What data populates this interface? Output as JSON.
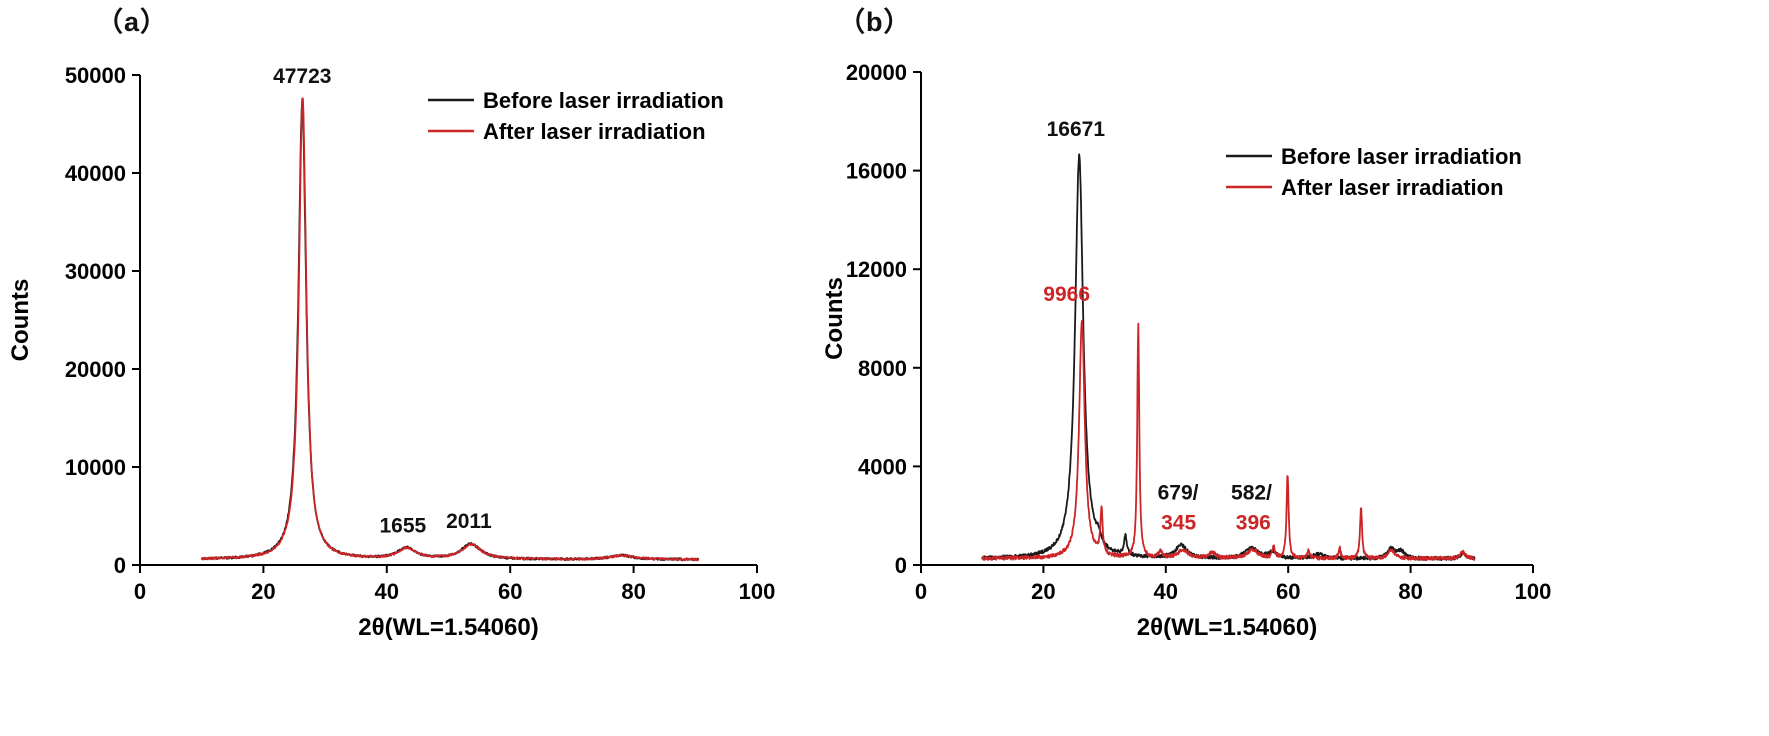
{
  "figure": {
    "panels": [
      {
        "label": "（a）"
      },
      {
        "label": "（b）"
      }
    ]
  },
  "chart_data": [
    {
      "id": "a",
      "type": "line",
      "panel_label": "（a）",
      "xlabel": "2θ(WL=1.54060)",
      "ylabel": "Counts",
      "xlim": [
        0,
        100
      ],
      "ylim": [
        0,
        50000
      ],
      "xticks": [
        0,
        20,
        40,
        60,
        80,
        100
      ],
      "yticks": [
        0,
        10000,
        20000,
        30000,
        40000,
        50000
      ],
      "x_range_data": [
        10,
        90.5
      ],
      "legend": [
        {
          "label": "Before laser irradiation",
          "color": "#1a1a1a"
        },
        {
          "label": "After laser irradiation",
          "color": "#cc2527"
        }
      ],
      "series": [
        {
          "name": "Before laser irradiation",
          "color": "#1a1a1a",
          "baseline": 550,
          "noise": 110,
          "peaks": [
            [
              26.3,
              46800,
              0.75
            ],
            [
              43.2,
              1150,
              1.7
            ],
            [
              53.6,
              1550,
              1.9
            ],
            [
              78.0,
              420,
              2.2
            ]
          ]
        },
        {
          "name": "After laser irradiation",
          "color": "#cc2527",
          "baseline": 560,
          "noise": 110,
          "peaks": [
            [
              26.35,
              47200,
              0.73
            ],
            [
              43.3,
              1100,
              1.7
            ],
            [
              53.7,
              1500,
              1.9
            ],
            [
              78.1,
              400,
              2.2
            ]
          ]
        }
      ],
      "annotations": [
        {
          "text": "47723",
          "x": 26.3,
          "y": 49200,
          "color": "#111111"
        },
        {
          "text": "1655",
          "x": 42.6,
          "y": 3300,
          "color": "#111111"
        },
        {
          "text": "2011",
          "x": 53.3,
          "y": 3800,
          "color": "#111111"
        }
      ]
    },
    {
      "id": "b",
      "type": "line",
      "panel_label": "（b）",
      "xlabel": "2θ(WL=1.54060)",
      "ylabel": "Counts",
      "xlim": [
        0,
        100
      ],
      "ylim": [
        0,
        20000
      ],
      "xticks": [
        0,
        20,
        40,
        60,
        80,
        100
      ],
      "yticks": [
        0,
        4000,
        8000,
        12000,
        16000,
        20000
      ],
      "x_range_data": [
        10,
        90.5
      ],
      "legend": [
        {
          "label": "Before laser irradiation",
          "color": "#1a1a1a"
        },
        {
          "label": "After laser irradiation",
          "color": "#cc2527"
        }
      ],
      "series": [
        {
          "name": "Before laser irradiation",
          "color": "#1a1a1a",
          "baseline": 250,
          "noise": 70,
          "peaks": [
            [
              25.85,
              16350,
              0.8
            ],
            [
              29.0,
              380,
              0.4
            ],
            [
              33.4,
              820,
              0.25
            ],
            [
              42.5,
              520,
              1.1
            ],
            [
              54.0,
              430,
              1.2
            ],
            [
              57.4,
              260,
              0.8
            ],
            [
              65.0,
              170,
              1.2
            ],
            [
              76.8,
              390,
              0.7
            ],
            [
              78.4,
              300,
              0.7
            ],
            [
              88.6,
              210,
              0.6
            ]
          ]
        },
        {
          "name": "After laser irradiation",
          "color": "#cc2527",
          "baseline": 260,
          "noise": 70,
          "peaks": [
            [
              26.3,
              9650,
              0.55
            ],
            [
              29.5,
              1850,
              0.22
            ],
            [
              35.5,
              9450,
              0.2
            ],
            [
              39.1,
              300,
              0.3
            ],
            [
              42.8,
              330,
              1.0
            ],
            [
              47.6,
              240,
              0.6
            ],
            [
              54.2,
              360,
              1.0
            ],
            [
              57.6,
              500,
              0.22
            ],
            [
              59.9,
              3400,
              0.2
            ],
            [
              63.3,
              350,
              0.22
            ],
            [
              68.4,
              420,
              0.22
            ],
            [
              71.9,
              2050,
              0.2
            ],
            [
              76.9,
              330,
              0.7
            ],
            [
              88.5,
              260,
              0.5
            ]
          ]
        }
      ],
      "annotations": [
        {
          "text": "16671",
          "x": 25.3,
          "y": 17400,
          "color": "#111111"
        },
        {
          "text": "9966",
          "x": 23.8,
          "y": 10700,
          "color": "#cc2527"
        },
        {
          "text": "679/",
          "x": 42.0,
          "y": 2650,
          "color": "#111111"
        },
        {
          "text": "345",
          "x": 42.1,
          "y": 1450,
          "color": "#cc2527"
        },
        {
          "text": "582/",
          "x": 54.0,
          "y": 2650,
          "color": "#111111"
        },
        {
          "text": "396",
          "x": 54.3,
          "y": 1450,
          "color": "#cc2527"
        }
      ]
    }
  ]
}
